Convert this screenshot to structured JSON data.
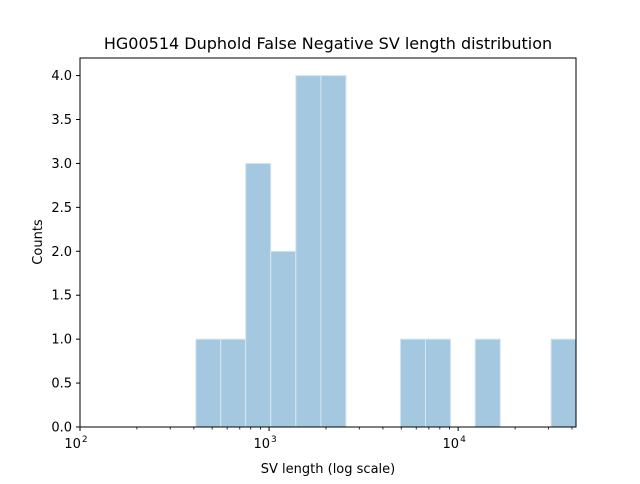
{
  "chart_data": {
    "type": "bar",
    "title": "HG00514 Duphold False Negative SV length distribution",
    "xlabel": "SV length (log scale)",
    "ylabel": "Counts",
    "x_scale": "log",
    "xlim": [
      100,
      42000
    ],
    "ylim": [
      0,
      4.2
    ],
    "x_ticks": [
      {
        "value": 100,
        "base": "10",
        "exp": "2"
      },
      {
        "value": 1000,
        "base": "10",
        "exp": "3"
      },
      {
        "value": 10000,
        "base": "10",
        "exp": "4"
      }
    ],
    "y_ticks": [
      "0.0",
      "0.5",
      "1.0",
      "1.5",
      "2.0",
      "2.5",
      "3.0",
      "3.5",
      "4.0"
    ],
    "grid": false,
    "bar_color": "#a4c8e0",
    "bar_edge_color": "#d6e6f0",
    "bins": [
      {
        "start": 410,
        "end": 555,
        "count": 1
      },
      {
        "start": 555,
        "end": 752,
        "count": 1
      },
      {
        "start": 752,
        "end": 1020,
        "count": 3
      },
      {
        "start": 1020,
        "end": 1385,
        "count": 2
      },
      {
        "start": 1385,
        "end": 1880,
        "count": 4
      },
      {
        "start": 1880,
        "end": 2550,
        "count": 4
      },
      {
        "start": 4950,
        "end": 6720,
        "count": 1
      },
      {
        "start": 6720,
        "end": 9120,
        "count": 1
      },
      {
        "start": 12300,
        "end": 16700,
        "count": 1
      },
      {
        "start": 31000,
        "end": 42000,
        "count": 1
      }
    ]
  }
}
